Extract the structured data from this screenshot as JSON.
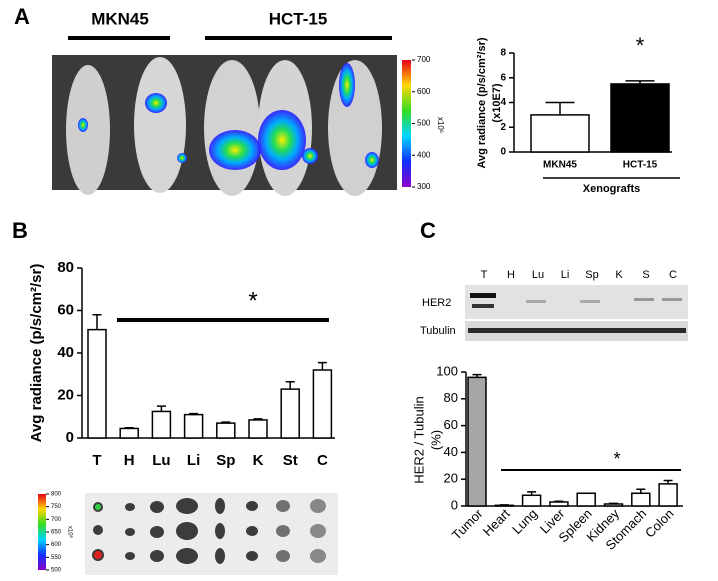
{
  "figure": {
    "panel_labels": [
      "A",
      "B",
      "C"
    ],
    "mouse_image": {
      "labels": [
        "MKN45",
        "HCT-15"
      ],
      "colorbar": {
        "lim": [
          300,
          700
        ],
        "ticks": [
          300,
          400,
          500,
          600,
          700
        ],
        "unit": "x10⁶"
      }
    },
    "organ_image": {
      "colorbar": {
        "lim": [
          500,
          800
        ],
        "ticks": [
          500,
          550,
          600,
          650,
          700,
          750,
          800
        ],
        "unit": "x10⁶"
      }
    },
    "blot": {
      "lanes": [
        "T",
        "H",
        "Lu",
        "Li",
        "Sp",
        "K",
        "S",
        "C"
      ],
      "rows": [
        "HER2",
        "Tubulin"
      ]
    }
  },
  "chart_data": [
    {
      "type": "bar",
      "ylabel": [
        "Avg radiance (p/s/cm²/sr)",
        "(x10E7)"
      ],
      "categories": [
        "MKN45",
        "HCT-15"
      ],
      "values": [
        3.0,
        5.5
      ],
      "errors": [
        1.0,
        0.25
      ],
      "colors": [
        "#ffffff",
        "#000000"
      ],
      "xgroup_label": "Xenografts",
      "annotation": "*",
      "ylim": [
        0,
        8
      ],
      "yticks": [
        0,
        2,
        4,
        6,
        8
      ]
    },
    {
      "type": "bar",
      "ylabel": [
        "Avg radiance (p/s/cm²/sr)"
      ],
      "categories": [
        "T",
        "H",
        "Lu",
        "Li",
        "Sp",
        "K",
        "St",
        "C"
      ],
      "values": [
        51,
        4.5,
        12.5,
        11,
        7,
        8.5,
        23,
        32
      ],
      "errors": [
        7,
        0.3,
        2.5,
        0.5,
        0.5,
        0.5,
        3.5,
        3.5
      ],
      "colors": [
        "#ffffff",
        "#ffffff",
        "#ffffff",
        "#ffffff",
        "#ffffff",
        "#ffffff",
        "#ffffff",
        "#ffffff"
      ],
      "annotation": "*",
      "ylim": [
        0,
        80
      ],
      "yticks": [
        0,
        20,
        40,
        60,
        80
      ]
    },
    {
      "type": "bar",
      "ylabel": [
        "HER2 / Tubulin",
        "(%)"
      ],
      "categories": [
        "Tumor",
        "Heart",
        "Lung",
        "Liver",
        "Spleen",
        "Kidney",
        "Stomach",
        "Colon"
      ],
      "values": [
        96,
        0.5,
        8,
        3,
        9.5,
        1.5,
        9.5,
        16.5
      ],
      "errors": [
        2,
        0.3,
        2.5,
        0.5,
        0,
        0.5,
        3,
        2.5
      ],
      "colors": [
        "#a6a6a6",
        "#ffffff",
        "#ffffff",
        "#ffffff",
        "#ffffff",
        "#ffffff",
        "#ffffff",
        "#ffffff"
      ],
      "annotation": "*",
      "ylim": [
        0,
        100
      ],
      "yticks": [
        0,
        20,
        40,
        60,
        80,
        100
      ]
    }
  ]
}
